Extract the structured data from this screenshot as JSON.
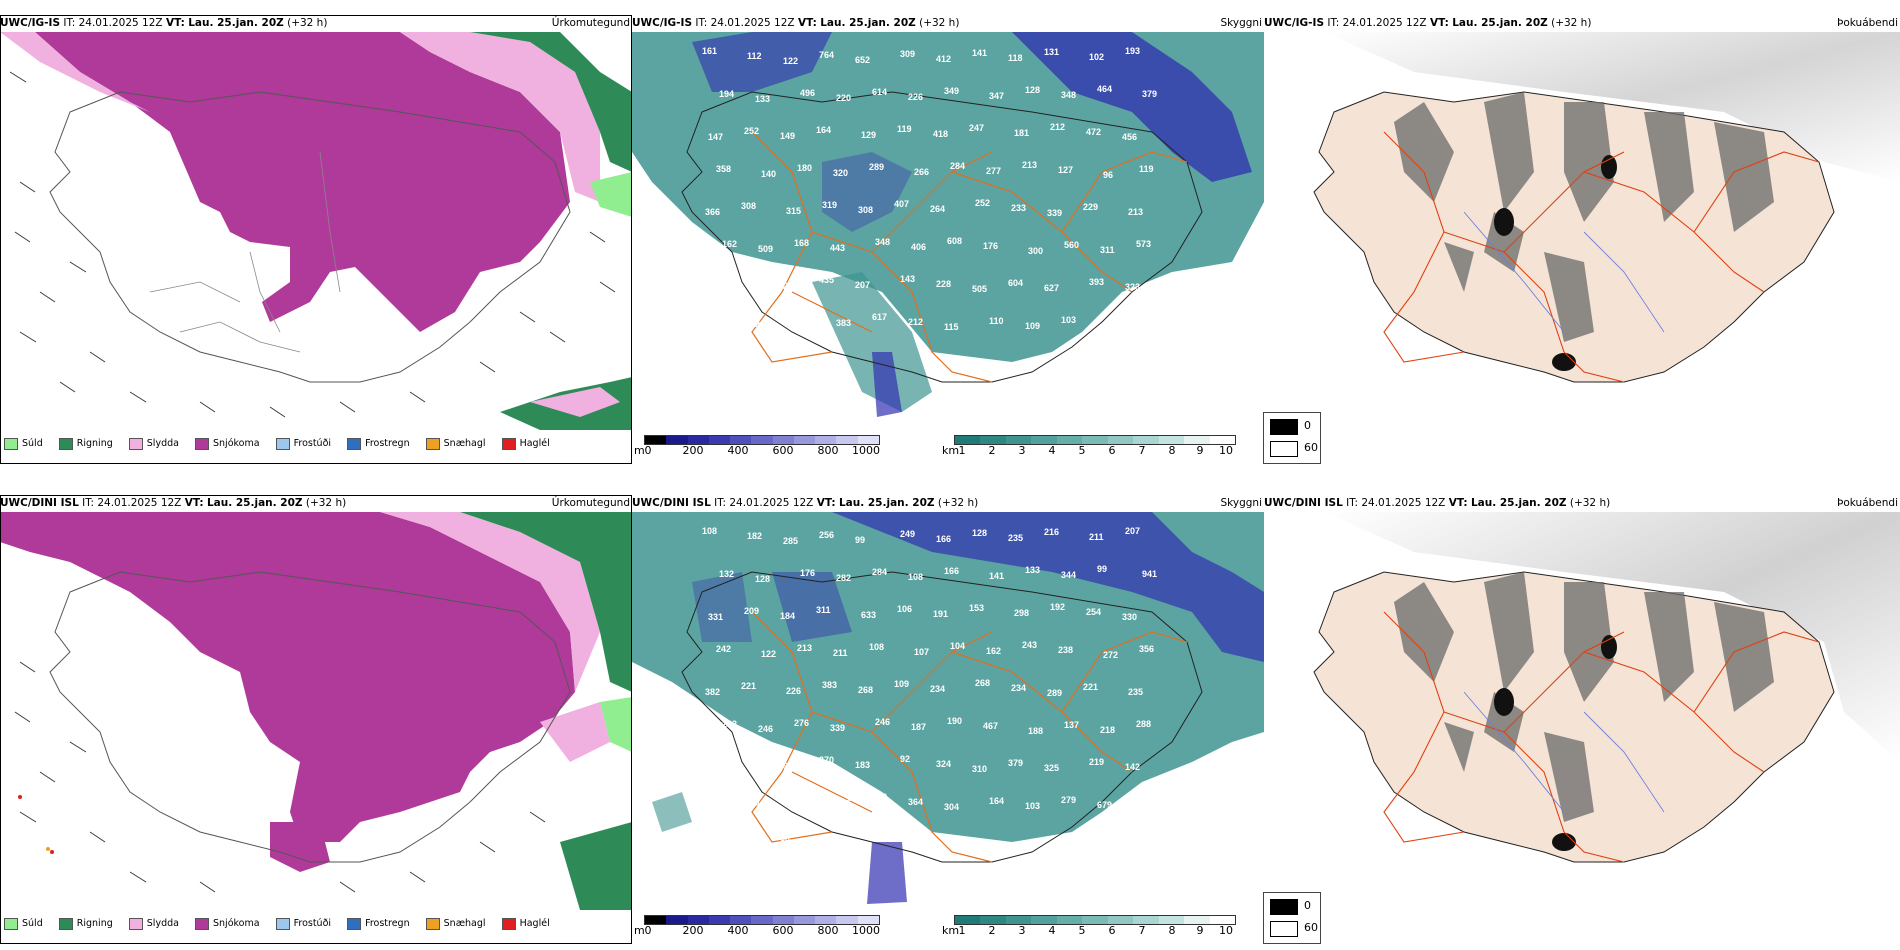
{
  "rows": [
    {
      "precip": {
        "model": "UWC/IG-IS",
        "it": "IT: 24.01.2025 12Z",
        "vt_label": "VT:",
        "vt": "Lau. 25.jan. 20Z",
        "offset": "(+32 h)",
        "title": "Úrkomutegund"
      },
      "vis": {
        "model": "UWC/IG-IS",
        "it": "IT: 24.01.2025 12Z",
        "vt_label": "VT:",
        "vt": "Lau. 25.jan. 20Z",
        "offset": "(+32 h)",
        "title": "Skyggni",
        "labels": [
          "161",
          "112",
          "122",
          "764",
          "652",
          "309",
          "412",
          "141",
          "118",
          "131",
          "102",
          "193",
          "194",
          "133",
          "496",
          "220",
          "614",
          "226",
          "349",
          "347",
          "128",
          "348",
          "464",
          "379",
          "147",
          "252",
          "149",
          "164",
          "129",
          "119",
          "418",
          "247",
          "181",
          "212",
          "472",
          "456",
          "358",
          "140",
          "180",
          "320",
          "289",
          "266",
          "284",
          "277",
          "213",
          "127",
          "96",
          "119",
          "366",
          "308",
          "315",
          "319",
          "308",
          "407",
          "264",
          "252",
          "233",
          "339",
          "229",
          "213",
          "162",
          "509",
          "168",
          "443",
          "348",
          "406",
          "608",
          "176",
          "300",
          "560",
          "311",
          "573",
          "258",
          "196",
          "240",
          "435",
          "207",
          "143",
          "228",
          "505",
          "604",
          "627",
          "393",
          "323",
          "348",
          "230",
          "221",
          "383",
          "617",
          "212",
          "115",
          "110",
          "109",
          "103"
        ]
      },
      "fog": {
        "model": "UWC/IG-IS",
        "it": "IT: 24.01.2025 12Z",
        "vt_label": "VT:",
        "vt": "Lau. 25.jan. 20Z",
        "offset": "(+32 h)",
        "title": "Þokuábendi"
      }
    },
    {
      "precip": {
        "model": "UWC/DINI ISL",
        "it": "IT: 24.01.2025 12Z",
        "vt_label": "VT:",
        "vt": "Lau. 25.jan. 20Z",
        "offset": "(+32 h)",
        "title": "Úrkomutegund"
      },
      "vis": {
        "model": "UWC/DINI ISL",
        "it": "IT: 24.01.2025 12Z",
        "vt_label": "VT:",
        "vt": "Lau. 25.jan. 20Z",
        "offset": "(+32 h)",
        "title": "Skyggni",
        "labels": [
          "108",
          "182",
          "285",
          "256",
          "99",
          "249",
          "166",
          "128",
          "235",
          "216",
          "211",
          "207",
          "132",
          "128",
          "176",
          "282",
          "284",
          "108",
          "166",
          "141",
          "133",
          "344",
          "99",
          "941",
          "331",
          "209",
          "184",
          "311",
          "633",
          "106",
          "191",
          "153",
          "298",
          "192",
          "254",
          "330",
          "242",
          "122",
          "213",
          "211",
          "108",
          "107",
          "104",
          "162",
          "243",
          "238",
          "272",
          "356",
          "382",
          "221",
          "226",
          "383",
          "268",
          "109",
          "234",
          "268",
          "234",
          "289",
          "221",
          "235",
          "282",
          "246",
          "276",
          "339",
          "246",
          "187",
          "190",
          "467",
          "188",
          "137",
          "218",
          "288",
          "412",
          "335",
          "915",
          "370",
          "183",
          "92",
          "324",
          "310",
          "379",
          "325",
          "219",
          "142",
          "140",
          "437",
          "521",
          "476",
          "383",
          "364",
          "304",
          "164",
          "103",
          "279",
          "679",
          "834",
          "122",
          "100",
          "89"
        ]
      },
      "fog": {
        "model": "UWC/DINI ISL",
        "it": "IT: 24.01.2025 12Z",
        "vt_label": "VT:",
        "vt": "Lau. 25.jan. 20Z",
        "offset": "(+32 h)",
        "title": "Þokuábendi"
      }
    }
  ],
  "precip_legend": [
    {
      "label": "Súld",
      "color": "#90ee90"
    },
    {
      "label": "Rigning",
      "color": "#2e8b57"
    },
    {
      "label": "Slydda",
      "color": "#f0b0e0"
    },
    {
      "label": "Snjókoma",
      "color": "#b03a9a"
    },
    {
      "label": "Frostúði",
      "color": "#9cc8f0"
    },
    {
      "label": "Frostregn",
      "color": "#2f6fc0"
    },
    {
      "label": "Snæhagl",
      "color": "#f0a020"
    },
    {
      "label": "Haglél",
      "color": "#e02020"
    }
  ],
  "cbar_m": {
    "unit": "m",
    "ticks": [
      "0",
      "200",
      "400",
      "600",
      "800",
      "1000"
    ],
    "colors": [
      "#000000",
      "#1a1a8c",
      "#2a2aa0",
      "#3b3bb0",
      "#5050bc",
      "#6868c8",
      "#8080d0",
      "#9898dc",
      "#b0b0e6",
      "#c8c8ee",
      "#e0e0f6"
    ]
  },
  "cbar_km": {
    "unit": "km",
    "ticks": [
      "1",
      "2",
      "3",
      "4",
      "5",
      "6",
      "7",
      "8",
      "9",
      "10"
    ],
    "colors": [
      "#1f7a78",
      "#2f8784",
      "#3f9490",
      "#52a19c",
      "#66aea9",
      "#7bbbb6",
      "#92c8c3",
      "#aad6d1",
      "#c4e4e0",
      "#e6f3f1",
      "#ffffff"
    ]
  },
  "fog_legend": [
    {
      "label": "0",
      "color": "#000000"
    },
    {
      "label": "60",
      "color": "#ffffff"
    }
  ],
  "colors": {
    "snow": "#b03a9a",
    "sleet": "#f0b0e0",
    "rain": "#2e8b57",
    "drizzle": "#90ee90",
    "vis_teal": "#3f9490",
    "vis_blue": "#3030b0",
    "road": "#e07020",
    "fog_land": "#f5e3d5"
  }
}
